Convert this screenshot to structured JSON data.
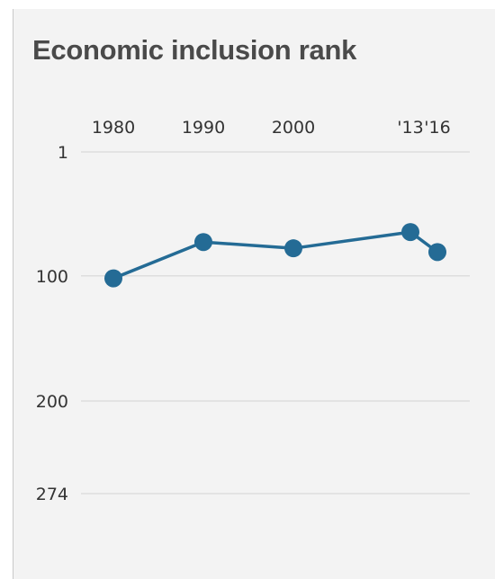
{
  "chart_data": {
    "type": "line",
    "title": "Economic inclusion rank",
    "xlabel": "",
    "ylabel": "",
    "x_ticks": [
      "1980",
      "1990",
      "2000",
      "'13",
      "'16"
    ],
    "y_ticks": [
      "1",
      "100",
      "200",
      "274"
    ],
    "y_reversed": true,
    "ylim": [
      1,
      274
    ],
    "grid": true,
    "series": [
      {
        "x": [
          1980,
          1990,
          2000,
          2013,
          2016
        ],
        "values": [
          102,
          73,
          78,
          65,
          81
        ]
      }
    ],
    "colors": {
      "line": "#246b95",
      "grid": "#dedede",
      "background": "#f3f3f3"
    }
  }
}
